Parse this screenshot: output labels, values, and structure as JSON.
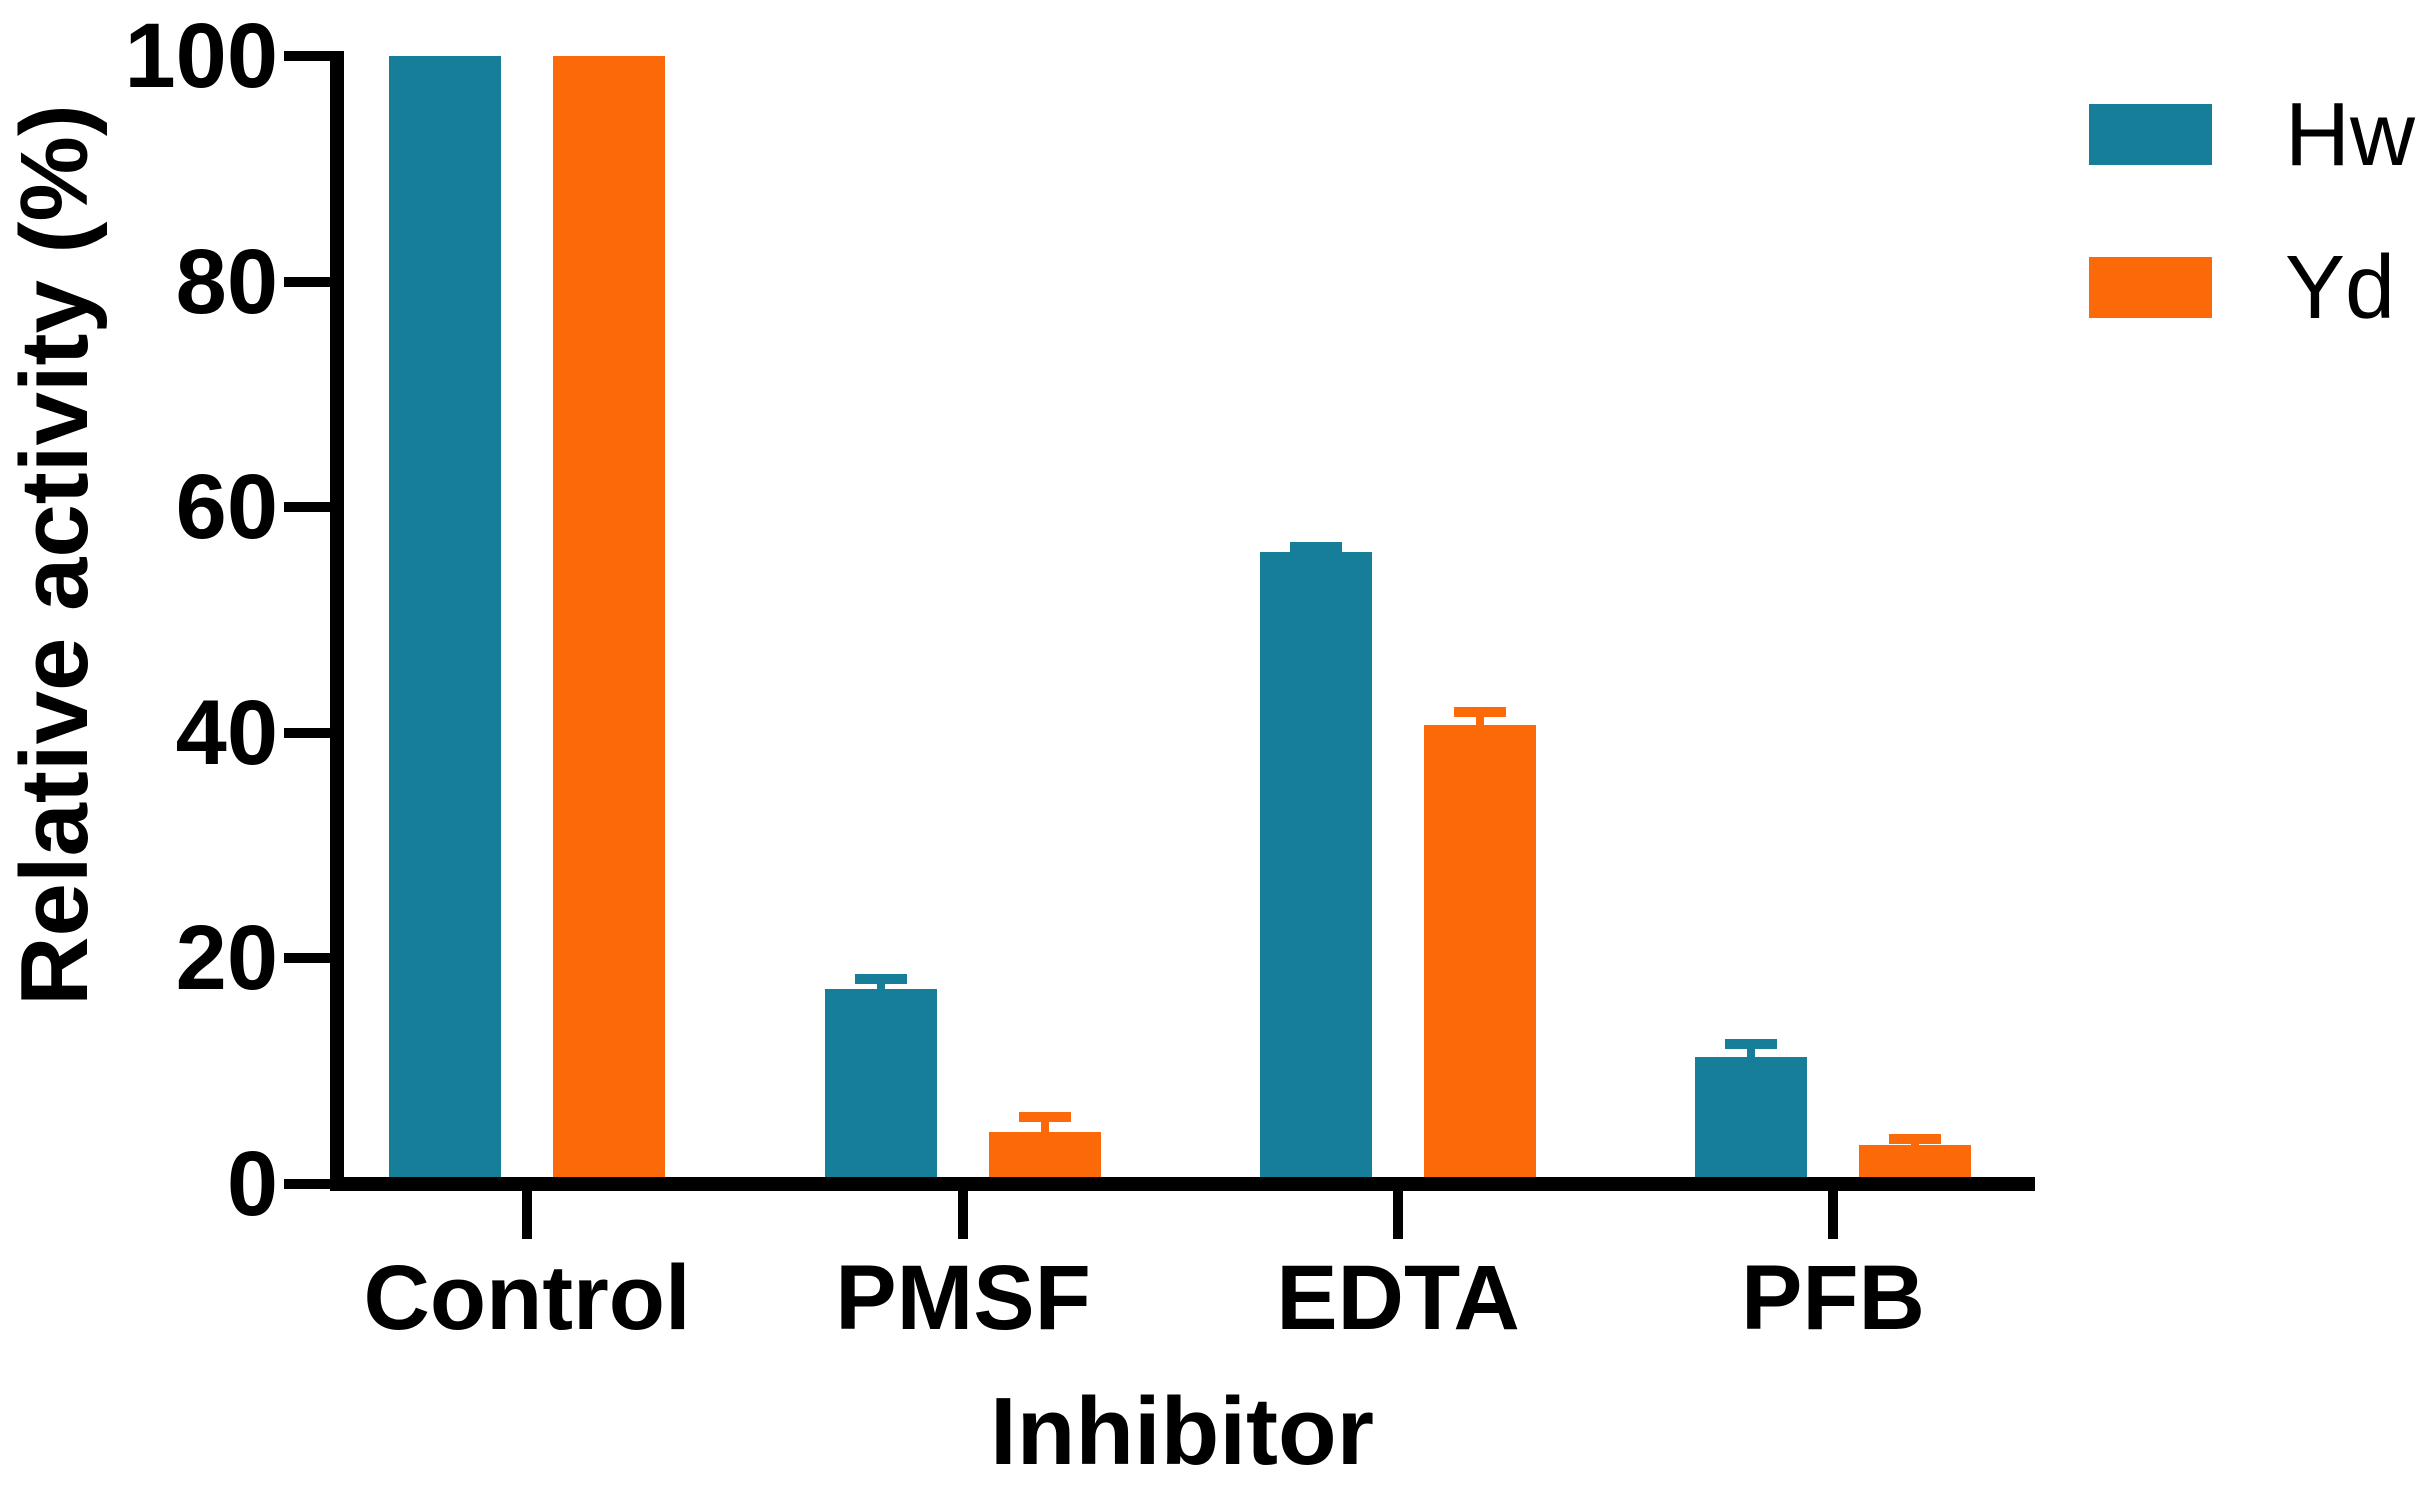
{
  "chart_data": {
    "type": "bar",
    "subtype": "grouped-vertical-with-error-bars",
    "title": "",
    "xlabel": "Inhibitor",
    "ylabel": "Relative activity (%)",
    "categories": [
      "Control",
      "PMSF",
      "EDTA",
      "PFB"
    ],
    "series": [
      {
        "name": "Hw",
        "color": "#177E9A",
        "values": [
          100,
          17.3,
          56,
          11.3
        ],
        "errors_plus": [
          0,
          0.9,
          0.5,
          1.1
        ]
      },
      {
        "name": "Yd",
        "color": "#FC6908",
        "values": [
          100,
          4.6,
          40.7,
          3.5
        ],
        "errors_plus": [
          0,
          1.3,
          1.1,
          0.5
        ]
      }
    ],
    "yticks": [
      0,
      20,
      40,
      60,
      80,
      100
    ],
    "ylim": [
      0,
      100
    ],
    "grid": false,
    "legend_position": "top-right",
    "axis_color": "#000000",
    "text_color": "#000000",
    "background_color": "#ffffff"
  }
}
